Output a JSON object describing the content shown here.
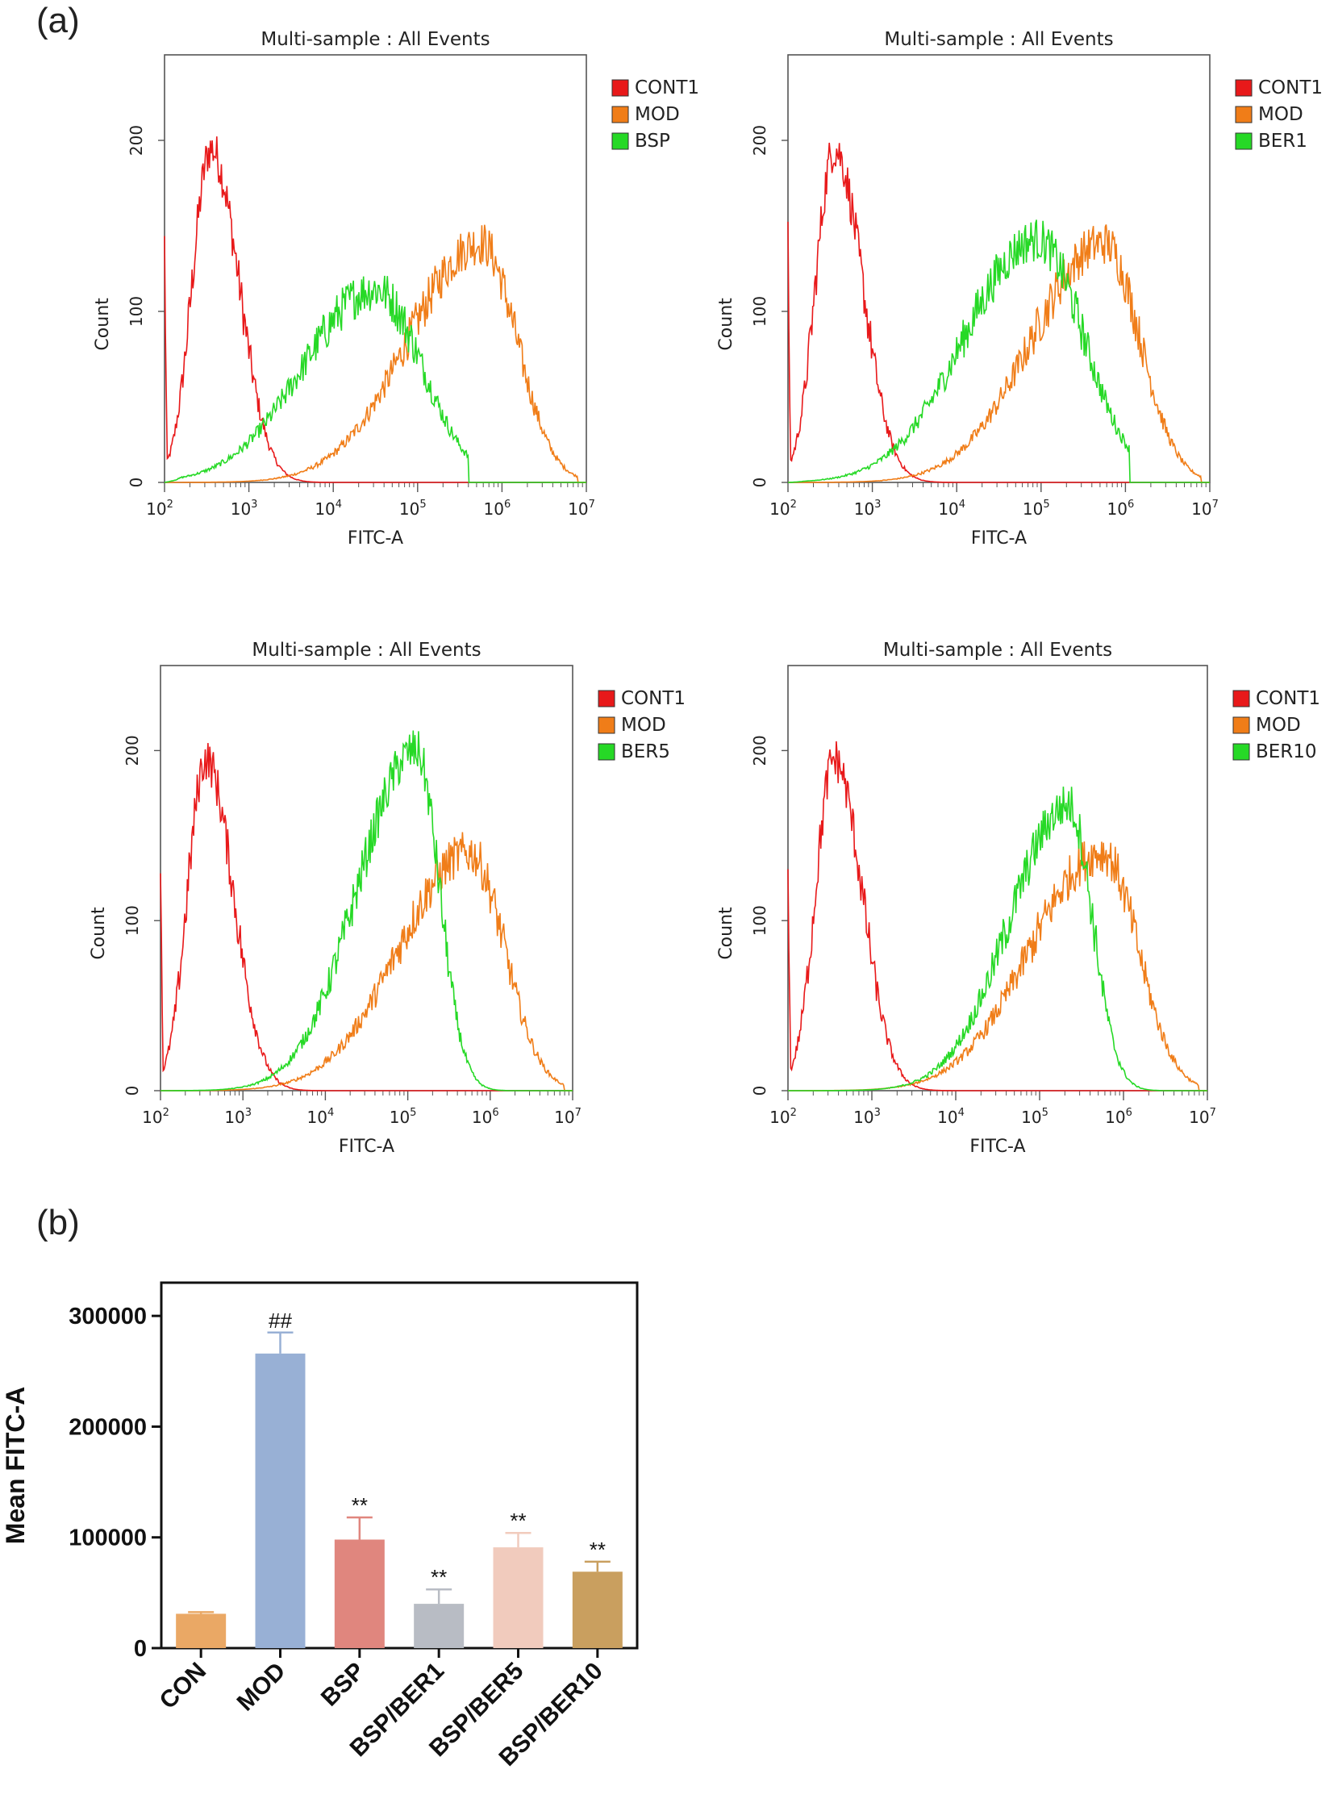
{
  "panel_a_label": "(a)",
  "panel_b_label": "(b)",
  "chart_data": [
    {
      "type": "histogram",
      "title": "Multi-sample : All Events",
      "xlabel": "FITC-A",
      "ylabel": "Count",
      "x_scale": "log10",
      "xlim_exp": [
        2,
        7
      ],
      "ylim": [
        0,
        250
      ],
      "y_ticks": [
        0,
        100,
        200
      ],
      "x_tick_exponents": [
        2,
        3,
        4,
        5,
        6,
        7
      ],
      "tick_base": "10",
      "colors": {
        "CONT1": "#e8191a",
        "MOD": "#f07d18",
        "BSP": "#26d926"
      },
      "series": [
        {
          "name": "CONT1",
          "peak_log10": 2.55,
          "peak_count": 195,
          "left_edge": 140
        },
        {
          "name": "MOD",
          "peak_log10": 5.75,
          "peak_count": 140
        },
        {
          "name": "BSP",
          "peak_log10": 4.5,
          "peak_count": 113
        }
      ]
    },
    {
      "type": "histogram",
      "title": "Multi-sample : All Events",
      "xlabel": "FITC-A",
      "ylabel": "Count",
      "x_scale": "log10",
      "xlim_exp": [
        2,
        7
      ],
      "ylim": [
        0,
        250
      ],
      "y_ticks": [
        0,
        100,
        200
      ],
      "x_tick_exponents": [
        2,
        3,
        4,
        5,
        6,
        7
      ],
      "tick_base": "10",
      "colors": {
        "CONT1": "#e8191a",
        "MOD": "#f07d18",
        "BER1": "#26d926"
      },
      "series": [
        {
          "name": "CONT1",
          "peak_log10": 2.55,
          "peak_count": 195,
          "left_edge": 140
        },
        {
          "name": "MOD",
          "peak_log10": 5.75,
          "peak_count": 140
        },
        {
          "name": "BER1",
          "peak_log10": 4.95,
          "peak_count": 142
        }
      ]
    },
    {
      "type": "histogram",
      "title": "Multi-sample : All Events",
      "xlabel": "FITC-A",
      "ylabel": "Count",
      "x_scale": "log10",
      "xlim_exp": [
        2,
        7
      ],
      "ylim": [
        0,
        250
      ],
      "y_ticks": [
        0,
        100,
        200
      ],
      "x_tick_exponents": [
        2,
        3,
        4,
        5,
        6,
        7
      ],
      "tick_base": "10",
      "colors": {
        "CONT1": "#e8191a",
        "MOD": "#f07d18",
        "BER5": "#26d926"
      },
      "series": [
        {
          "name": "CONT1",
          "peak_log10": 2.55,
          "peak_count": 195,
          "left_edge": 140
        },
        {
          "name": "MOD",
          "peak_log10": 5.75,
          "peak_count": 140
        },
        {
          "name": "BER5",
          "peak_log10": 5.1,
          "peak_count": 200
        }
      ]
    },
    {
      "type": "histogram",
      "title": "Multi-sample : All Events",
      "xlabel": "FITC-A",
      "ylabel": "Count",
      "x_scale": "log10",
      "xlim_exp": [
        2,
        7
      ],
      "ylim": [
        0,
        250
      ],
      "y_ticks": [
        0,
        100,
        200
      ],
      "x_tick_exponents": [
        2,
        3,
        4,
        5,
        6,
        7
      ],
      "tick_base": "10",
      "colors": {
        "CONT1": "#e8191a",
        "MOD": "#f07d18",
        "BER10": "#26d926"
      },
      "series": [
        {
          "name": "CONT1",
          "peak_log10": 2.55,
          "peak_count": 195,
          "left_edge": 140
        },
        {
          "name": "MOD",
          "peak_log10": 5.75,
          "peak_count": 140
        },
        {
          "name": "BER10",
          "peak_log10": 5.35,
          "peak_count": 168
        }
      ]
    },
    {
      "type": "bar",
      "title": "",
      "xlabel": "",
      "ylabel": "Mean FITC-A",
      "ylim": [
        0,
        330000
      ],
      "y_ticks": [
        0,
        100000,
        200000,
        300000
      ],
      "categories": [
        "CON",
        "MOD",
        "BSP",
        "BSP/BER1",
        "BSP/BER5",
        "BSP/BER10"
      ],
      "values": [
        31000,
        266000,
        98000,
        40000,
        91000,
        69000
      ],
      "errors": [
        1500,
        19000,
        20000,
        13000,
        13000,
        9000
      ],
      "significance": [
        "",
        "##",
        "**",
        "**",
        "**",
        "**"
      ],
      "colors": [
        "#eaa865",
        "#98b0d5",
        "#e0867e",
        "#b8bcc4",
        "#f1cbbd",
        "#c99f5f"
      ]
    }
  ]
}
